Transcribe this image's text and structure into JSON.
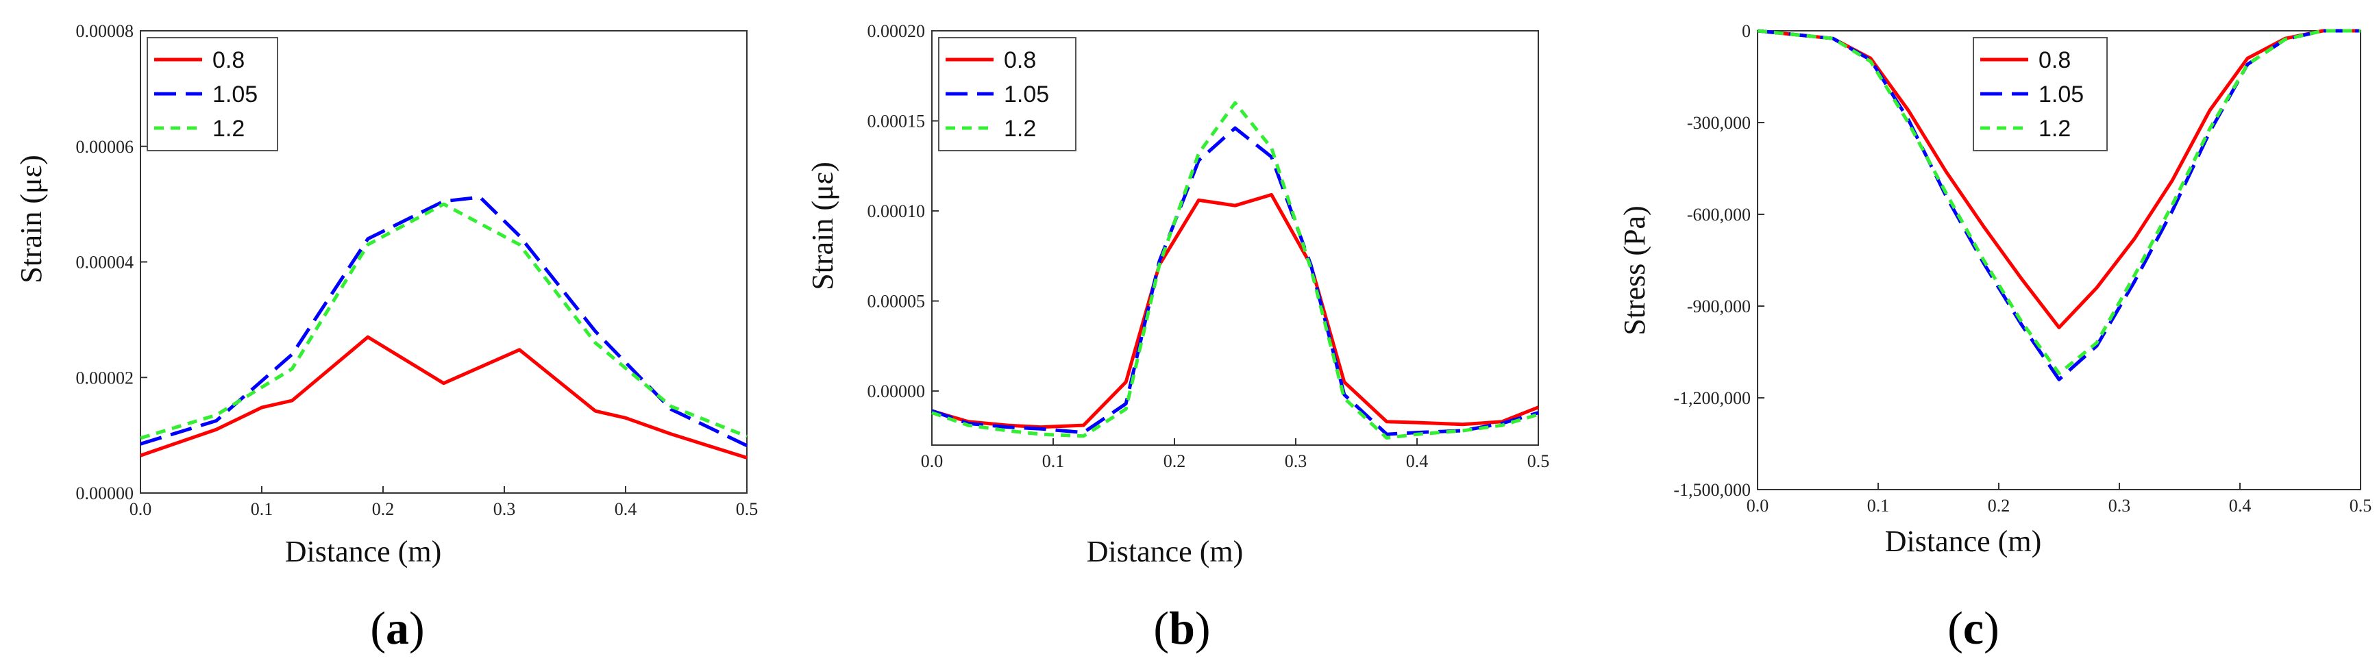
{
  "series_styles": [
    {
      "color": "#ff0000",
      "dash": ""
    },
    {
      "color": "#0000ff",
      "dash": "32,14"
    },
    {
      "color": "#33ee33",
      "dash": "14,10"
    }
  ],
  "chart_data": [
    {
      "type": "line",
      "panel_label_letter": "a",
      "xlabel": "Distance (m)",
      "ylabel": "Strain (με)",
      "xlim": [
        0,
        0.5
      ],
      "ylim": [
        0,
        8e-05
      ],
      "xticks": [
        "0.0",
        "0.1",
        "0.2",
        "0.3",
        "0.4",
        "0.5"
      ],
      "xtick_values": [
        0,
        0.1,
        0.2,
        0.3,
        0.4,
        0.5
      ],
      "yticks": [
        "0.00000",
        "0.00002",
        "0.00004",
        "0.00006",
        "0.00008"
      ],
      "ytick_values": [
        0,
        2e-05,
        4e-05,
        6e-05,
        8e-05
      ],
      "legend_position": "top-left",
      "series": [
        {
          "name": "0.8",
          "x": [
            0,
            0.0625,
            0.1,
            0.125,
            0.1875,
            0.25,
            0.3125,
            0.375,
            0.4,
            0.4375,
            0.5
          ],
          "values": [
            6.5e-06,
            1.1e-05,
            1.48e-05,
            1.6e-05,
            2.7e-05,
            1.9e-05,
            2.48e-05,
            1.42e-05,
            1.3e-05,
            1.02e-05,
            6.1e-06
          ]
        },
        {
          "name": "1.05",
          "x": [
            0,
            0.0625,
            0.125,
            0.1875,
            0.25,
            0.28,
            0.3125,
            0.375,
            0.4375,
            0.5
          ],
          "values": [
            8.5e-06,
            1.25e-05,
            2.4e-05,
            4.4e-05,
            5.05e-05,
            5.12e-05,
            4.45e-05,
            2.8e-05,
            1.45e-05,
            8.2e-06
          ]
        },
        {
          "name": "1.2",
          "x": [
            0,
            0.0625,
            0.125,
            0.1875,
            0.25,
            0.3125,
            0.375,
            0.4375,
            0.5
          ],
          "values": [
            9.5e-06,
            1.35e-05,
            2.15e-05,
            4.3e-05,
            5e-05,
            4.3e-05,
            2.6e-05,
            1.5e-05,
            9.8e-06
          ]
        }
      ]
    },
    {
      "type": "line",
      "panel_label_letter": "b",
      "xlabel": "Distance (m)",
      "ylabel": "Strain (με)",
      "xlim": [
        0,
        0.5
      ],
      "ylim": [
        -3e-05,
        0.0002
      ],
      "xticks": [
        "0.0",
        "0.1",
        "0.2",
        "0.3",
        "0.4",
        "0.5"
      ],
      "xtick_values": [
        0,
        0.1,
        0.2,
        0.3,
        0.4,
        0.5
      ],
      "yticks": [
        "0.00000",
        "0.00005",
        "0.00010",
        "0.00015",
        "0.00020"
      ],
      "ytick_values": [
        0,
        5e-05,
        0.0001,
        0.00015,
        0.0002
      ],
      "legend_position": "top-left",
      "series": [
        {
          "name": "0.8",
          "x": [
            0,
            0.03,
            0.0625,
            0.09,
            0.125,
            0.16,
            0.1875,
            0.22,
            0.25,
            0.28,
            0.3125,
            0.34,
            0.375,
            0.4,
            0.4375,
            0.47,
            0.5
          ],
          "values": [
            -1.1e-05,
            -1.7e-05,
            -1.9e-05,
            -2e-05,
            -1.9e-05,
            5e-06,
            7e-05,
            0.000106,
            0.000103,
            0.000109,
            7e-05,
            5e-06,
            -1.7e-05,
            -1.75e-05,
            -1.85e-05,
            -1.7e-05,
            -9e-06
          ]
        },
        {
          "name": "1.05",
          "x": [
            0,
            0.03,
            0.0625,
            0.09,
            0.125,
            0.16,
            0.1875,
            0.22,
            0.25,
            0.28,
            0.3125,
            0.34,
            0.375,
            0.4,
            0.4375,
            0.47,
            0.5
          ],
          "values": [
            -1.1e-05,
            -1.8e-05,
            -2e-05,
            -2.1e-05,
            -2.3e-05,
            -7e-06,
            7.2e-05,
            0.000128,
            0.000146,
            0.00013,
            7e-05,
            -2e-06,
            -2.4e-05,
            -2.3e-05,
            -2.2e-05,
            -1.8e-05,
            -1.2e-05
          ]
        },
        {
          "name": "1.2",
          "x": [
            0,
            0.03,
            0.0625,
            0.09,
            0.125,
            0.16,
            0.1875,
            0.22,
            0.25,
            0.28,
            0.3125,
            0.34,
            0.375,
            0.4,
            0.4375,
            0.47,
            0.5
          ],
          "values": [
            -1.2e-05,
            -1.9e-05,
            -2.2e-05,
            -2.4e-05,
            -2.5e-05,
            -1e-05,
            7e-05,
            0.000132,
            0.00016,
            0.000135,
            6.8e-05,
            -4e-06,
            -2.6e-05,
            -2.4e-05,
            -2.2e-05,
            -1.9e-05,
            -1.3e-05
          ]
        }
      ]
    },
    {
      "type": "line",
      "panel_label_letter": "c",
      "xlabel": "Distance (m)",
      "ylabel": "Stress (Pa)",
      "xlim": [
        0,
        0.5
      ],
      "ylim": [
        -1500000,
        0
      ],
      "xticks": [
        "0.0",
        "0.1",
        "0.2",
        "0.3",
        "0.4",
        "0.5"
      ],
      "xtick_values": [
        0,
        0.1,
        0.2,
        0.3,
        0.4,
        0.5
      ],
      "yticks": [
        "0",
        "-300,000",
        "-600,000",
        "-900,000",
        "-1,200,000",
        "-1,500,000"
      ],
      "ytick_values": [
        0,
        -300000,
        -600000,
        -900000,
        -1200000,
        -1500000
      ],
      "legend_position": "top-center",
      "series": [
        {
          "name": "0.8",
          "x": [
            0,
            0.0625,
            0.09375,
            0.125,
            0.15625,
            0.1875,
            0.21875,
            0.25,
            0.28125,
            0.3125,
            0.34375,
            0.375,
            0.40625,
            0.4375,
            0.46875,
            0.5
          ],
          "values": [
            0,
            -25000,
            -90000,
            -260000,
            -460000,
            -640000,
            -810000,
            -970000,
            -840000,
            -680000,
            -490000,
            -260000,
            -90000,
            -25000,
            0,
            0
          ]
        },
        {
          "name": "1.05",
          "x": [
            0,
            0.0625,
            0.09375,
            0.125,
            0.15625,
            0.1875,
            0.21875,
            0.25,
            0.28125,
            0.3125,
            0.34375,
            0.375,
            0.40625,
            0.4375,
            0.46875,
            0.5
          ],
          "values": [
            0,
            -25000,
            -95000,
            -290000,
            -540000,
            -760000,
            -960000,
            -1140000,
            -1030000,
            -820000,
            -590000,
            -330000,
            -110000,
            -28000,
            0,
            0
          ]
        },
        {
          "name": "1.2",
          "x": [
            0,
            0.0625,
            0.09375,
            0.125,
            0.15625,
            0.1875,
            0.21875,
            0.25,
            0.28125,
            0.3125,
            0.34375,
            0.375,
            0.40625,
            0.4375,
            0.46875,
            0.5
          ],
          "values": [
            0,
            -25000,
            -100000,
            -300000,
            -530000,
            -750000,
            -950000,
            -1120000,
            -1020000,
            -800000,
            -570000,
            -320000,
            -110000,
            -28000,
            0,
            0
          ]
        }
      ]
    }
  ]
}
